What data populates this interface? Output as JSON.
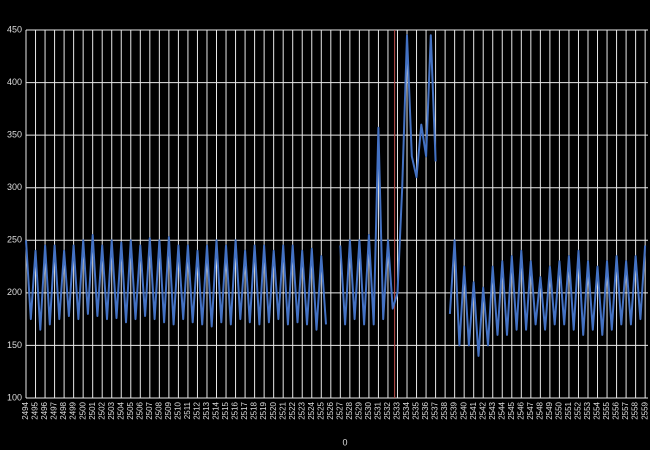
{
  "chart_data": {
    "type": "line",
    "x_label": "0",
    "x": [
      2494,
      2494.5,
      2495,
      2495.5,
      2496,
      2496.5,
      2497,
      2497.5,
      2498,
      2498.5,
      2499,
      2499.5,
      2500,
      2500.5,
      2501,
      2501.5,
      2502,
      2502.5,
      2503,
      2503.5,
      2504,
      2504.5,
      2505,
      2505.5,
      2506,
      2506.5,
      2507,
      2507.5,
      2508,
      2508.5,
      2509,
      2509.5,
      2510,
      2510.5,
      2511,
      2511.5,
      2512,
      2512.5,
      2513,
      2513.5,
      2514,
      2514.5,
      2515,
      2515.5,
      2516,
      2516.5,
      2517,
      2517.5,
      2518,
      2518.5,
      2519,
      2519.5,
      2520,
      2520.5,
      2521,
      2521.5,
      2522,
      2522.5,
      2523,
      2523.5,
      2524,
      2524.5,
      2525,
      2525.5,
      2526,
      2526.5,
      2527,
      2527.5,
      2528,
      2528.5,
      2529,
      2529.5,
      2530,
      2530.5,
      2531,
      2531.5,
      2532,
      2532.5,
      2533,
      2533.5,
      2534,
      2534.5,
      2535,
      2535.5,
      2536,
      2536.5,
      2537,
      2537.5,
      2538,
      2538.5,
      2539,
      2539.5,
      2540,
      2540.5,
      2541,
      2541.5,
      2542,
      2542.5,
      2543,
      2543.5,
      2544,
      2544.5,
      2545,
      2545.5,
      2546,
      2546.5,
      2547,
      2547.5,
      2548,
      2548.5,
      2549,
      2549.5,
      2550,
      2550.5,
      2551,
      2551.5,
      2552,
      2552.5,
      2553,
      2553.5,
      2554,
      2554.5,
      2555,
      2555.5,
      2556,
      2556.5,
      2557,
      2557.5,
      2558,
      2558.5,
      2559
    ],
    "series": [
      {
        "color": "#4472c4",
        "values": [
          250,
          175,
          240,
          165,
          245,
          170,
          245,
          175,
          240,
          178,
          245,
          175,
          250,
          180,
          255,
          178,
          245,
          175,
          250,
          176,
          248,
          172,
          250,
          175,
          245,
          178,
          252,
          175,
          250,
          172,
          253,
          170,
          245,
          175,
          245,
          172,
          240,
          170,
          245,
          168,
          250,
          172,
          245,
          170,
          250,
          175,
          240,
          172,
          245,
          170,
          245,
          172,
          240,
          175,
          245,
          170,
          245,
          172,
          240,
          170,
          242,
          165,
          235,
          170,
          null,
          null,
          245,
          170,
          250,
          175,
          250,
          170,
          255,
          170,
          357,
          175,
          250,
          185,
          200,
          300,
          445,
          330,
          310,
          360,
          330,
          445,
          325,
          null,
          null,
          180,
          250,
          150,
          225,
          150,
          210,
          140,
          205,
          150,
          225,
          160,
          230,
          160,
          235,
          165,
          240,
          165,
          230,
          170,
          215,
          165,
          225,
          170,
          230,
          170,
          235,
          165,
          240,
          160,
          230,
          165,
          225,
          160,
          230,
          165,
          235,
          170,
          230,
          170,
          235,
          175,
          245
        ]
      }
    ],
    "marker_x": 2532.7,
    "marker_color": "#c0504d",
    "xlim": [
      2494,
      2559.3
    ],
    "xticks": [
      2494,
      2495,
      2496,
      2497,
      2498,
      2499,
      2500,
      2501,
      2502,
      2503,
      2504,
      2505,
      2506,
      2507,
      2508,
      2509,
      2510,
      2511,
      2512,
      2513,
      2514,
      2515,
      2516,
      2517,
      2518,
      2519,
      2520,
      2521,
      2522,
      2523,
      2524,
      2525,
      2526,
      2527,
      2528,
      2529,
      2530,
      2531,
      2532,
      2533,
      2534,
      2535,
      2536,
      2537,
      2538,
      2539,
      2540,
      2541,
      2542,
      2543,
      2544,
      2545,
      2546,
      2547,
      2548,
      2549,
      2550,
      2551,
      2552,
      2553,
      2554,
      2555,
      2556,
      2557,
      2558,
      2559
    ],
    "ylim": [
      100,
      450
    ],
    "yticks": [
      100,
      150,
      200,
      250,
      300,
      350,
      400,
      450
    ],
    "grid": true
  }
}
